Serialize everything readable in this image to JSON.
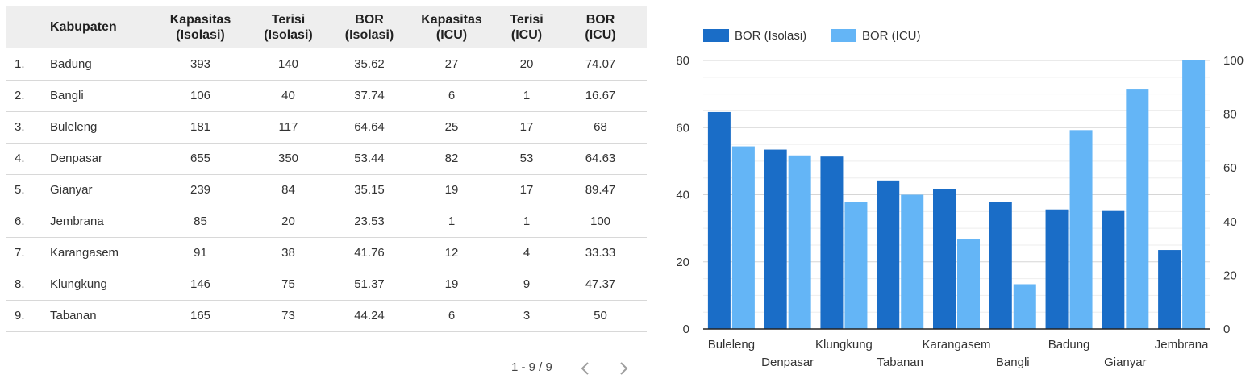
{
  "table": {
    "headers": [
      {
        "key": "idx",
        "line1": "",
        "line2": ""
      },
      {
        "key": "name",
        "line1": "Kabupaten",
        "line2": ""
      },
      {
        "key": "kap_iso",
        "line1": "Kapasitas",
        "line2": "(Isolasi)"
      },
      {
        "key": "ter_iso",
        "line1": "Terisi",
        "line2": "(Isolasi)"
      },
      {
        "key": "bor_iso",
        "line1": "BOR",
        "line2": "(Isolasi)"
      },
      {
        "key": "kap_icu",
        "line1": "Kapasitas",
        "line2": "(ICU)"
      },
      {
        "key": "ter_icu",
        "line1": "Terisi",
        "line2": "(ICU)"
      },
      {
        "key": "bor_icu",
        "line1": "BOR",
        "line2": "(ICU)"
      }
    ],
    "rows": [
      [
        "1.",
        "Badung",
        "393",
        "140",
        "35.62",
        "27",
        "20",
        "74.07"
      ],
      [
        "2.",
        "Bangli",
        "106",
        "40",
        "37.74",
        "6",
        "1",
        "16.67"
      ],
      [
        "3.",
        "Buleleng",
        "181",
        "117",
        "64.64",
        "25",
        "17",
        "68"
      ],
      [
        "4.",
        "Denpasar",
        "655",
        "350",
        "53.44",
        "82",
        "53",
        "64.63"
      ],
      [
        "5.",
        "Gianyar",
        "239",
        "84",
        "35.15",
        "19",
        "17",
        "89.47"
      ],
      [
        "6.",
        "Jembrana",
        "85",
        "20",
        "23.53",
        "1",
        "1",
        "100"
      ],
      [
        "7.",
        "Karangasem",
        "91",
        "38",
        "41.76",
        "12",
        "4",
        "33.33"
      ],
      [
        "8.",
        "Klungkung",
        "146",
        "75",
        "51.37",
        "19",
        "9",
        "47.37"
      ],
      [
        "9.",
        "Tabanan",
        "165",
        "73",
        "44.24",
        "6",
        "3",
        "50"
      ]
    ]
  },
  "pager": {
    "text": "1 - 9 / 9"
  },
  "chart_data": {
    "type": "bar",
    "categories": [
      "Buleleng",
      "Denpasar",
      "Klungkung",
      "Tabanan",
      "Karangasem",
      "Bangli",
      "Badung",
      "Gianyar",
      "Jembrana"
    ],
    "series": [
      {
        "name": "BOR (Isolasi)",
        "axis": "left",
        "color": "#1a6dc7",
        "values": [
          64.64,
          53.44,
          51.37,
          44.24,
          41.76,
          37.74,
          35.62,
          35.15,
          23.53
        ]
      },
      {
        "name": "BOR (ICU)",
        "axis": "right",
        "color": "#64b5f6",
        "values": [
          68,
          64.63,
          47.37,
          50,
          33.33,
          16.67,
          74.07,
          89.47,
          100
        ]
      }
    ],
    "y_left": {
      "ylim": [
        0,
        80
      ],
      "ticks": [
        0,
        20,
        40,
        60,
        80
      ]
    },
    "y_right": {
      "ylim": [
        0,
        100
      ],
      "ticks": [
        0,
        20,
        40,
        60,
        80,
        100
      ]
    },
    "legend_position": "top-left",
    "grid": true
  }
}
